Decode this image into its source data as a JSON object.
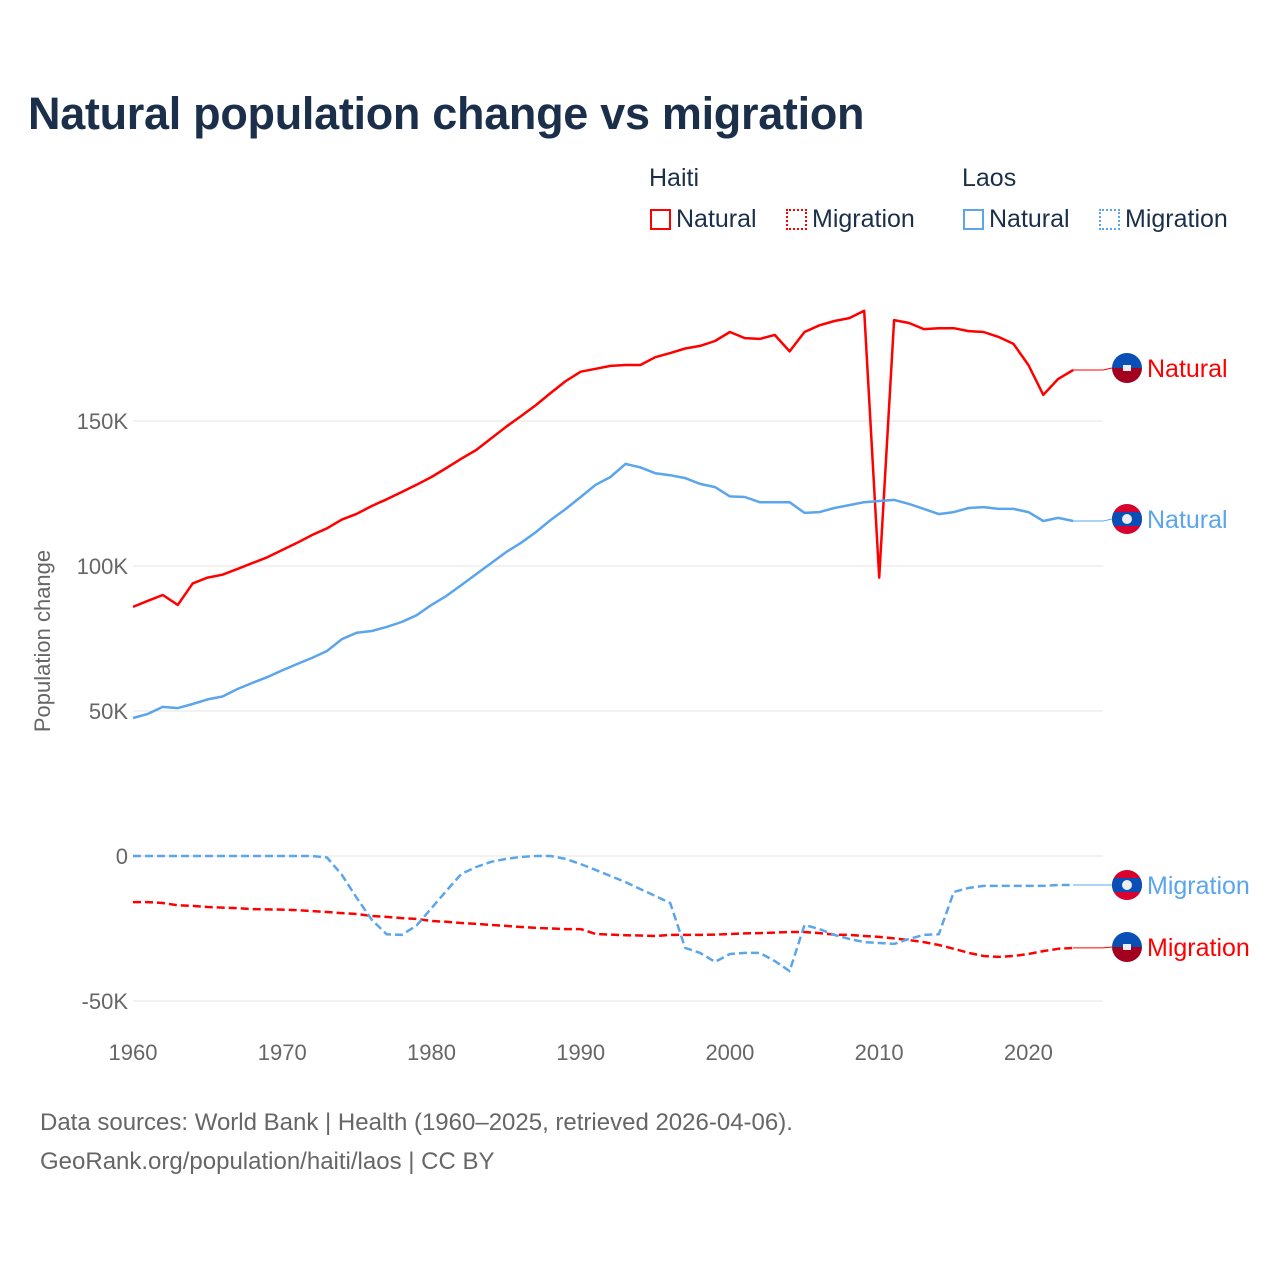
{
  "title": "Natural population change vs migration",
  "legend": {
    "groups": [
      {
        "name": "Haiti",
        "color": "#ff0000",
        "items": [
          "Natural",
          "Migration"
        ]
      },
      {
        "name": "Laos",
        "color": "#5aa5ec",
        "items": [
          "Natural",
          "Migration"
        ]
      }
    ]
  },
  "footer": {
    "line1": "Data sources: World Bank | Health (1960–2025, retrieved 2026-04-06).",
    "line2": "GeoRank.org/population/haiti/laos | CC BY"
  },
  "chart_data": {
    "type": "line",
    "title": "Natural population change vs migration",
    "xlabel": "",
    "ylabel": "Population change",
    "xlim": [
      1960,
      2025
    ],
    "ylim": [
      -50000,
      190000
    ],
    "x_ticks": [
      1960,
      1970,
      1980,
      1990,
      2000,
      2010,
      2020
    ],
    "x_tick_labels": [
      "1960",
      "1970",
      "1980",
      "1990",
      "2000",
      "2010",
      "2020"
    ],
    "y_ticks": [
      -50000,
      0,
      50000,
      100000,
      150000
    ],
    "y_tick_labels": [
      "-50K",
      "0",
      "50K",
      "100K",
      "150K"
    ],
    "grid": "horizontal",
    "legend_position": "top-right",
    "x_start": 1960,
    "series": [
      {
        "name": "Natural",
        "country": "Haiti",
        "color": "#ff0000",
        "dash": "solid",
        "end_label": "Natural",
        "values": [
          85900,
          88000,
          90000,
          86600,
          94000,
          96000,
          97000,
          99000,
          101000,
          103000,
          105500,
          108000,
          110700,
          113000,
          116000,
          118000,
          120700,
          123000,
          125500,
          128000,
          130700,
          133800,
          137000,
          140000,
          144000,
          148000,
          151700,
          155500,
          159700,
          163800,
          167000,
          168000,
          169000,
          169300,
          169300,
          172000,
          173400,
          175000,
          175900,
          177600,
          180700,
          178600,
          178300,
          179700,
          174000,
          180700,
          183000,
          184500,
          185500,
          188000,
          96000,
          184800,
          183800,
          181700,
          182000,
          182000,
          181000,
          180700,
          179000,
          176600,
          169300,
          159000,
          164500,
          167600
        ]
      },
      {
        "name": "Migration",
        "country": "Haiti",
        "color": "#ff0000",
        "dash": "dotted",
        "end_label": "Migration",
        "values": [
          -15900,
          -15900,
          -16200,
          -17000,
          -17200,
          -17600,
          -17800,
          -18000,
          -18300,
          -18400,
          -18500,
          -18700,
          -19000,
          -19300,
          -19700,
          -20000,
          -20700,
          -21000,
          -21400,
          -21700,
          -22400,
          -22700,
          -23100,
          -23400,
          -23800,
          -24100,
          -24500,
          -24800,
          -25000,
          -25200,
          -25200,
          -26900,
          -27100,
          -27300,
          -27400,
          -27600,
          -27200,
          -27200,
          -27200,
          -27100,
          -26900,
          -26700,
          -26600,
          -26400,
          -26200,
          -26200,
          -26600,
          -27100,
          -27200,
          -27600,
          -27900,
          -28400,
          -29000,
          -29700,
          -30700,
          -32000,
          -33400,
          -34500,
          -34800,
          -34500,
          -33800,
          -32800,
          -32000,
          -31700
        ]
      },
      {
        "name": "Natural",
        "country": "Laos",
        "color": "#5aa5ec",
        "dash": "solid",
        "end_label": "Natural",
        "values": [
          47600,
          49000,
          51400,
          51000,
          52400,
          54000,
          55000,
          57600,
          59700,
          61700,
          64000,
          66200,
          68300,
          70700,
          74800,
          77000,
          77600,
          79000,
          80700,
          83000,
          86600,
          89700,
          93400,
          97200,
          101000,
          104800,
          108000,
          111700,
          115900,
          119700,
          123800,
          128000,
          130700,
          135200,
          134000,
          132000,
          131300,
          130300,
          128300,
          127200,
          124000,
          123800,
          122000,
          122000,
          122000,
          118300,
          118600,
          120000,
          121000,
          122000,
          122400,
          122800,
          121400,
          119700,
          117900,
          118600,
          120000,
          120300,
          119700,
          119700,
          118600,
          115500,
          116600,
          115500
        ]
      },
      {
        "name": "Migration",
        "country": "Laos",
        "color": "#5aa5ec",
        "dash": "dotted",
        "end_label": "Migration",
        "values": [
          0,
          0,
          0,
          0,
          0,
          0,
          0,
          0,
          0,
          0,
          0,
          0,
          0,
          -500,
          -6500,
          -14500,
          -22000,
          -27000,
          -27200,
          -24000,
          -18000,
          -12000,
          -6200,
          -3800,
          -2000,
          -1000,
          -300,
          0,
          0,
          -1000,
          -2800,
          -4800,
          -6900,
          -9000,
          -11400,
          -13800,
          -16200,
          -31700,
          -33400,
          -36500,
          -33800,
          -33400,
          -33400,
          -36200,
          -39700,
          -23800,
          -25200,
          -27200,
          -28600,
          -29700,
          -30000,
          -30300,
          -28600,
          -27200,
          -27000,
          -12400,
          -11000,
          -10300,
          -10300,
          -10300,
          -10300,
          -10300,
          -10000,
          -10000
        ]
      }
    ]
  }
}
